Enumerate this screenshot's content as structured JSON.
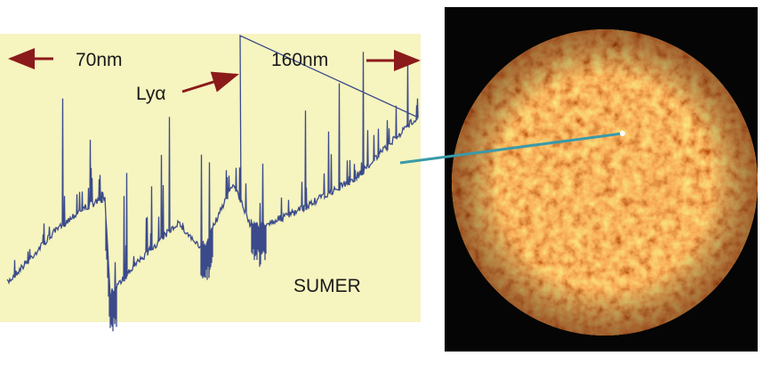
{
  "labels": {
    "left_wavelength": "70nm",
    "right_wavelength": "160nm",
    "line": "Lyα",
    "instrument": "SUMER"
  }
}
